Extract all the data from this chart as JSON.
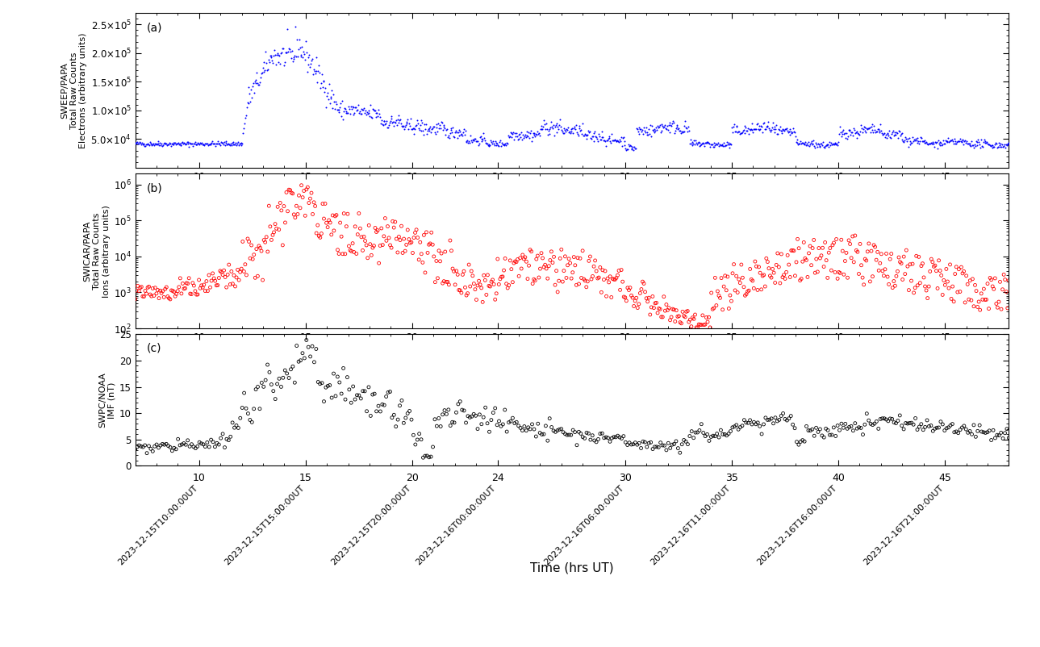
{
  "panel_a_label": "(a)",
  "panel_b_label": "(b)",
  "panel_c_label": "(c)",
  "ylabel_a_line1": "SWEEP/PAPA",
  "ylabel_a_line2": "Total Raw Counts",
  "ylabel_a_line3": "Electrons (arbitrary units)",
  "ylabel_b_line1": "SWICAR/PAPA",
  "ylabel_b_line2": "Total Raw Counts",
  "ylabel_b_line3": "Ions (arbitrary units)",
  "ylabel_c_line1": "SWPC/NOAA",
  "ylabel_c_line2": "IMF (nT)",
  "xlabel": "Time (hrs UT)",
  "xtick_labels": [
    "2023-12-15T10:00:00UT",
    "2023-12-15T15:00:00UT",
    "2023-12-15T20:00:00UT",
    "2023-12-16T00:00:00UT",
    "2023-12-16T06:00:00UT",
    "2023-12-16T11:00:00UT",
    "2023-12-16T16:00:00UT",
    "2023-12-16T21:00:00UT"
  ],
  "xtick_positions": [
    10,
    15,
    20,
    24,
    30,
    35,
    40,
    45
  ],
  "xtick_hr_labels": [
    "10",
    "15",
    "20",
    "24",
    "30",
    "35",
    "40",
    "45"
  ],
  "xmin": 7,
  "xmax": 48,
  "panel_a_ylim": [
    0,
    260000
  ],
  "panel_b_ylim_low": 100,
  "panel_b_ylim_high": 2000000,
  "panel_c_ylim": [
    0,
    25
  ],
  "panel_c_yticks": [
    0,
    5,
    10,
    15,
    20,
    25
  ],
  "color_a": "#0000FF",
  "color_b": "#FF0000",
  "color_c": "#000000",
  "bg_color": "#FFFFFF"
}
